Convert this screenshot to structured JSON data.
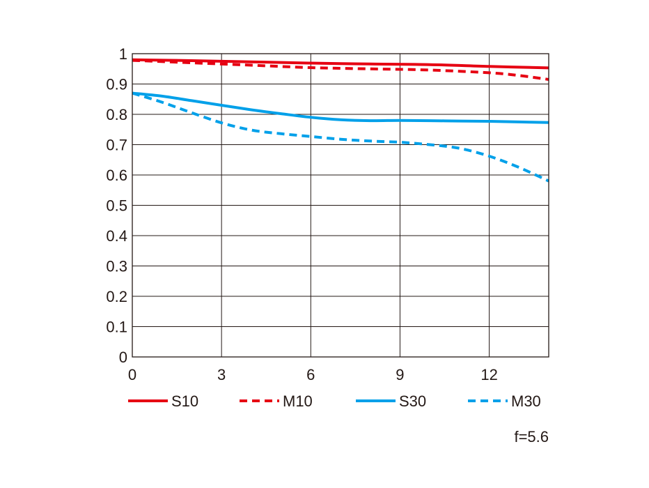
{
  "chart_data": {
    "type": "line",
    "xlim": [
      0,
      14
    ],
    "ylim": [
      0,
      1
    ],
    "x_ticks": [
      0,
      3,
      6,
      9,
      12
    ],
    "y_ticks": [
      0,
      0.1,
      0.2,
      0.3,
      0.4,
      0.5,
      0.6,
      0.7,
      0.8,
      0.9,
      1
    ],
    "x_tick_labels": [
      "0",
      "3",
      "6",
      "9",
      "12"
    ],
    "y_tick_labels": [
      "0",
      "0.1",
      "0.2",
      "0.3",
      "0.4",
      "0.5",
      "0.6",
      "0.7",
      "0.8",
      "0.9",
      "1"
    ],
    "grid": true,
    "legend_placement": "bottom",
    "annotation": "f=5.6",
    "series": [
      {
        "name": "S10",
        "color": "#e60012",
        "style": "solid",
        "x": [
          0,
          2,
          4,
          6,
          8,
          10,
          12,
          14
        ],
        "y": [
          0.98,
          0.977,
          0.973,
          0.969,
          0.966,
          0.964,
          0.958,
          0.953
        ]
      },
      {
        "name": "M10",
        "color": "#e60012",
        "style": "dashed",
        "x": [
          0,
          2,
          4,
          6,
          8,
          10,
          12,
          13,
          14
        ],
        "y": [
          0.978,
          0.97,
          0.962,
          0.954,
          0.95,
          0.946,
          0.937,
          0.928,
          0.915
        ]
      },
      {
        "name": "S30",
        "color": "#00a0e9",
        "style": "solid",
        "x": [
          0,
          1,
          2,
          3,
          4,
          5,
          6,
          7,
          8,
          9,
          10,
          11,
          12,
          13,
          14
        ],
        "y": [
          0.87,
          0.86,
          0.845,
          0.83,
          0.815,
          0.802,
          0.79,
          0.782,
          0.779,
          0.78,
          0.779,
          0.778,
          0.777,
          0.775,
          0.773
        ]
      },
      {
        "name": "M30",
        "color": "#00a0e9",
        "style": "dashed",
        "x": [
          0,
          1,
          2,
          3,
          4,
          5,
          6,
          7,
          8,
          9,
          10,
          11,
          12,
          13,
          14
        ],
        "y": [
          0.87,
          0.84,
          0.805,
          0.772,
          0.748,
          0.736,
          0.727,
          0.718,
          0.712,
          0.708,
          0.7,
          0.688,
          0.662,
          0.625,
          0.58
        ]
      }
    ]
  }
}
